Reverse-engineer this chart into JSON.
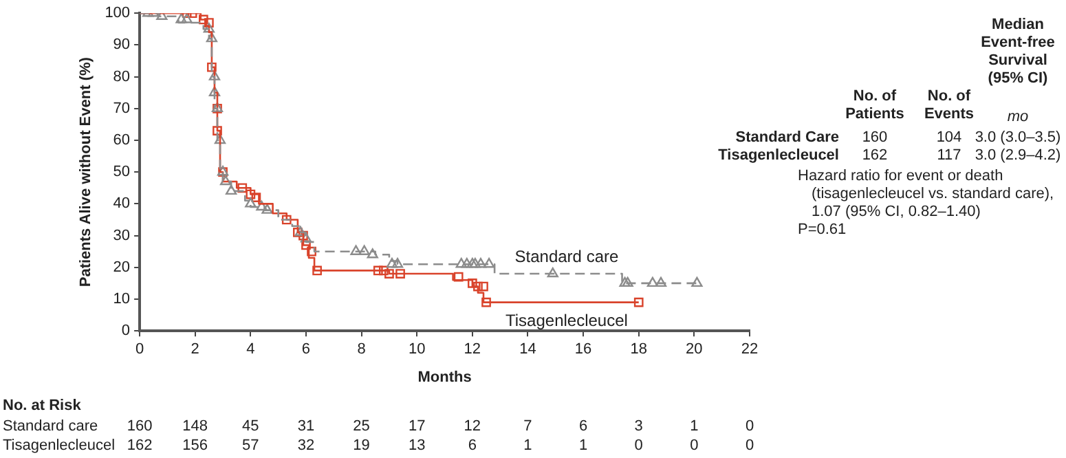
{
  "chart_data": {
    "type": "step",
    "xlabel": "Months",
    "ylabel": "Patients Alive without Event (%)",
    "xlim": [
      0,
      22
    ],
    "xticks": [
      0,
      2,
      4,
      6,
      8,
      10,
      12,
      14,
      16,
      18,
      20,
      22
    ],
    "ylim": [
      0,
      100
    ],
    "yticks": [
      0,
      10,
      20,
      30,
      40,
      50,
      60,
      70,
      80,
      90,
      100
    ],
    "grid": false,
    "legend": false,
    "series": [
      {
        "name": "Standard care",
        "color": "#8c8c8c",
        "line_style": "dashed",
        "marker": "none",
        "x": [
          0,
          0.7,
          1.4,
          2.3,
          2.5,
          2.6,
          2.7,
          2.8,
          2.9,
          3.0,
          3.3,
          3.8,
          4.0,
          4.5,
          5.0,
          5.5,
          5.8,
          6.0,
          6.3,
          8.5,
          9.0,
          9.3,
          12.8,
          17.4,
          20.1
        ],
        "values": [
          100,
          99,
          97,
          95,
          92,
          80,
          70,
          60,
          50,
          47,
          44,
          41,
          39,
          38,
          35,
          33,
          31,
          28,
          25,
          24,
          22,
          21,
          18,
          15,
          15
        ]
      },
      {
        "name": "Tisagenlecleucel",
        "color": "#d9432b",
        "line_style": "solid",
        "marker": "none",
        "x": [
          0,
          2.2,
          2.4,
          2.5,
          2.6,
          2.7,
          2.8,
          2.9,
          3.0,
          3.5,
          4.0,
          4.3,
          4.8,
          5.3,
          5.7,
          5.9,
          6.1,
          6.3,
          9.0,
          11.3,
          12.0,
          12.2,
          12.4,
          18.0
        ],
        "values": [
          100,
          98,
          96,
          94,
          83,
          75,
          63,
          50,
          47,
          45,
          43,
          40,
          37,
          35,
          31,
          27,
          23,
          19,
          18,
          16,
          14,
          12,
          9,
          9
        ]
      },
      {
        "type": "scatter",
        "color": "#8c8c8c",
        "marker": "triangle",
        "x": [
          0.3,
          0.5,
          0.8,
          1.5,
          1.7,
          2.5,
          2.6,
          2.7,
          2.7,
          2.8,
          2.9,
          3.0,
          3.1,
          3.3,
          4.0,
          4.4,
          4.6,
          5.8,
          6.0,
          7.8,
          8.1,
          8.4,
          9.1,
          9.3,
          11.6,
          11.8,
          12.0,
          12.1,
          12.3,
          12.6,
          14.9,
          17.5,
          17.6,
          18.5,
          18.8,
          20.1
        ],
        "values": [
          100,
          100,
          99,
          98,
          98,
          95,
          92,
          80,
          75,
          70,
          60,
          50,
          47,
          44,
          40,
          39,
          38,
          31,
          29,
          25,
          25,
          24,
          21,
          21,
          21,
          21,
          21,
          21,
          21,
          21,
          18,
          15,
          15,
          15,
          15,
          15
        ]
      },
      {
        "type": "scatter",
        "color": "#d9432b",
        "marker": "square",
        "x": [
          1.7,
          1.9,
          2.3,
          2.5,
          2.6,
          2.8,
          2.8,
          3.0,
          3.7,
          4.0,
          4.2,
          5.3,
          5.7,
          5.9,
          6.0,
          6.2,
          6.4,
          8.6,
          8.8,
          9.0,
          9.4,
          11.5,
          12.0,
          12.2,
          12.4,
          12.5,
          18.0
        ],
        "values": [
          100,
          100,
          98,
          97,
          83,
          70,
          63,
          50,
          45,
          43,
          42,
          35,
          31,
          30,
          27,
          25,
          19,
          19,
          19,
          18,
          18,
          17,
          15,
          14,
          14,
          9,
          9
        ]
      }
    ],
    "annotations": [
      "No. of Patients",
      "No. of Events",
      "Median Event-free Survival (95% CI)",
      "mo",
      "Standard Care",
      "160",
      "104",
      "3.0 (3.0–3.5)",
      "Tisagenlecleucel",
      "162",
      "117",
      "3.0 (2.9–4.2)",
      "Hazard ratio for event or death (tisagenlecleucel vs. standard care), 1.07 (95% CI, 0.82–1.40)",
      "P=0.61",
      "No. at Risk",
      "Standard care",
      "160",
      "148",
      "45",
      "31",
      "25",
      "17",
      "12",
      "7",
      "6",
      "3",
      "1",
      "0",
      "Tisagenlecleucel",
      "162",
      "156",
      "57",
      "32",
      "19",
      "13",
      "6",
      "1",
      "1",
      "0",
      "0",
      "0"
    ]
  }
}
